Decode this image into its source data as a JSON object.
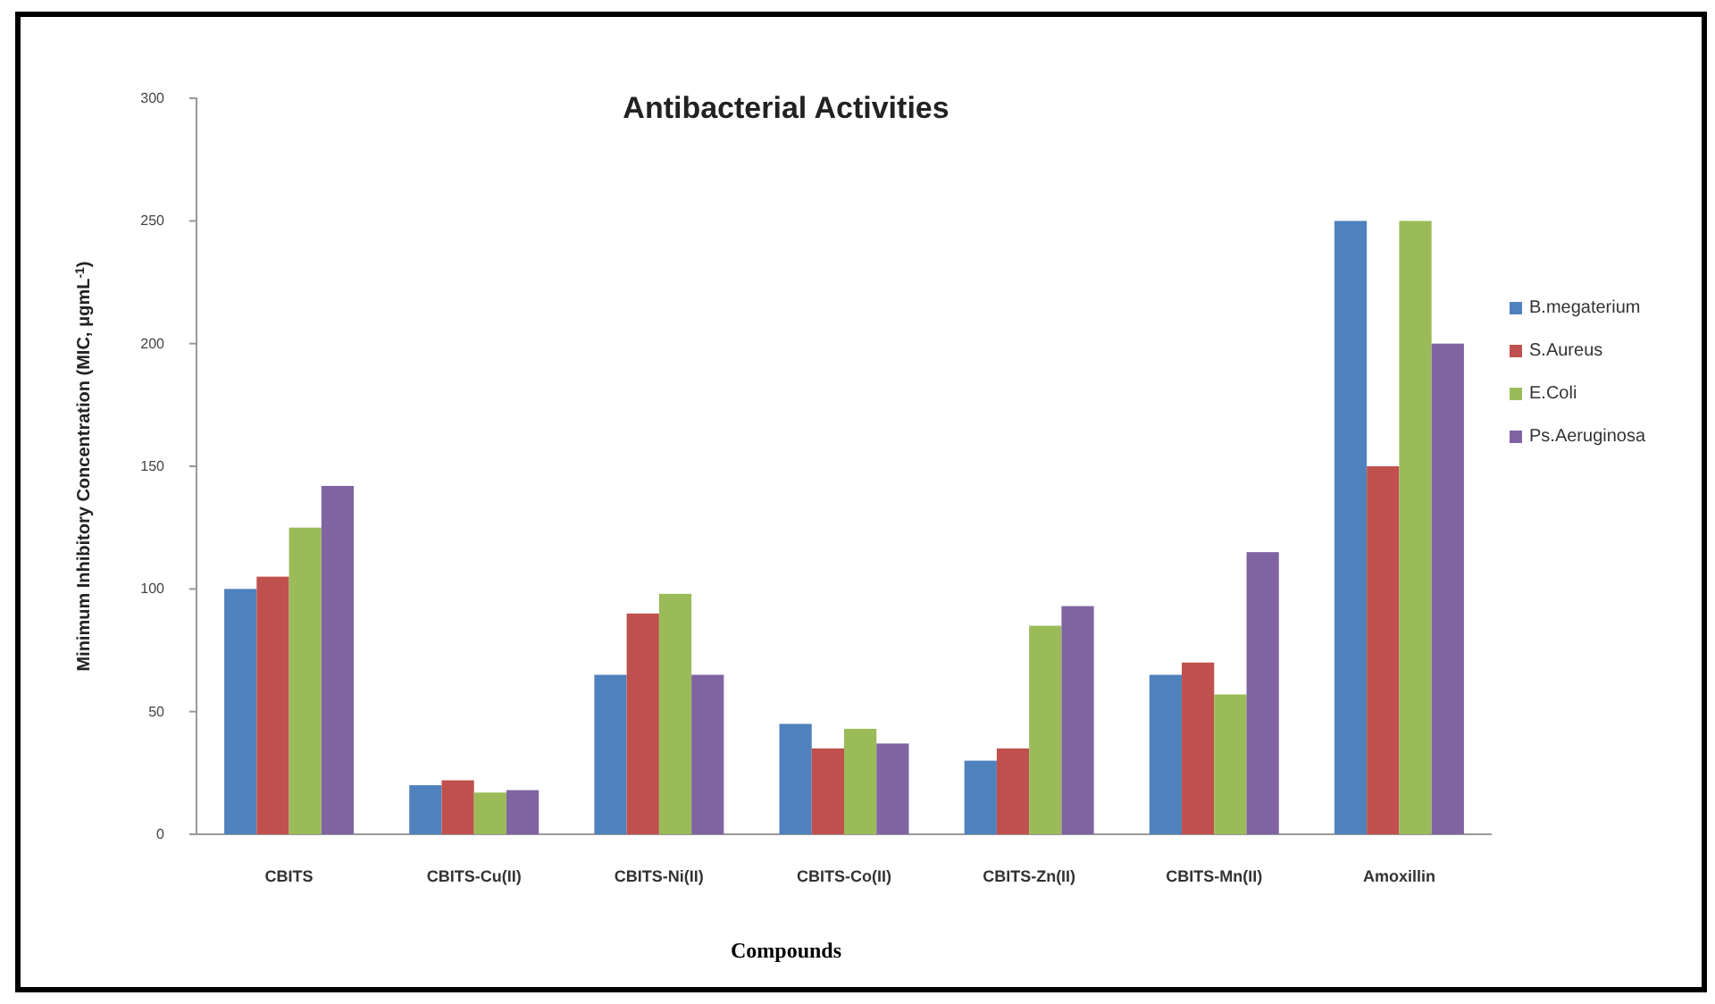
{
  "chart_data": {
    "type": "bar",
    "title": "Antibacterial Activities",
    "xlabel": "Compounds",
    "ylabel": "Minimum Inhibitory Concentration (MIC, μgmL$^{-1}$)",
    "categories": [
      "CBITS",
      "CBITS-Cu(II)",
      "CBITS-Ni(II)",
      "CBITS-Co(II)",
      "CBITS-Zn(II)",
      "CBITS-Mn(II)",
      "Amoxillin"
    ],
    "series": [
      {
        "name": "B.megaterium",
        "color": "#4f81bd",
        "values": [
          100,
          20,
          65,
          45,
          30,
          65,
          250
        ]
      },
      {
        "name": "S.Aureus",
        "color": "#c0504d",
        "values": [
          105,
          22,
          90,
          35,
          35,
          70,
          150
        ]
      },
      {
        "name": "E.Coli",
        "color": "#9bbb59",
        "values": [
          125,
          17,
          98,
          43,
          85,
          57,
          250
        ]
      },
      {
        "name": "Ps.Aeruginosa",
        "color": "#8064a2",
        "values": [
          142,
          18,
          65,
          37,
          93,
          115,
          200
        ]
      }
    ],
    "ylim": [
      0,
      300
    ],
    "yticks": [
      0,
      50,
      100,
      150,
      200,
      250,
      300
    ],
    "grid": false,
    "legend": "right"
  }
}
